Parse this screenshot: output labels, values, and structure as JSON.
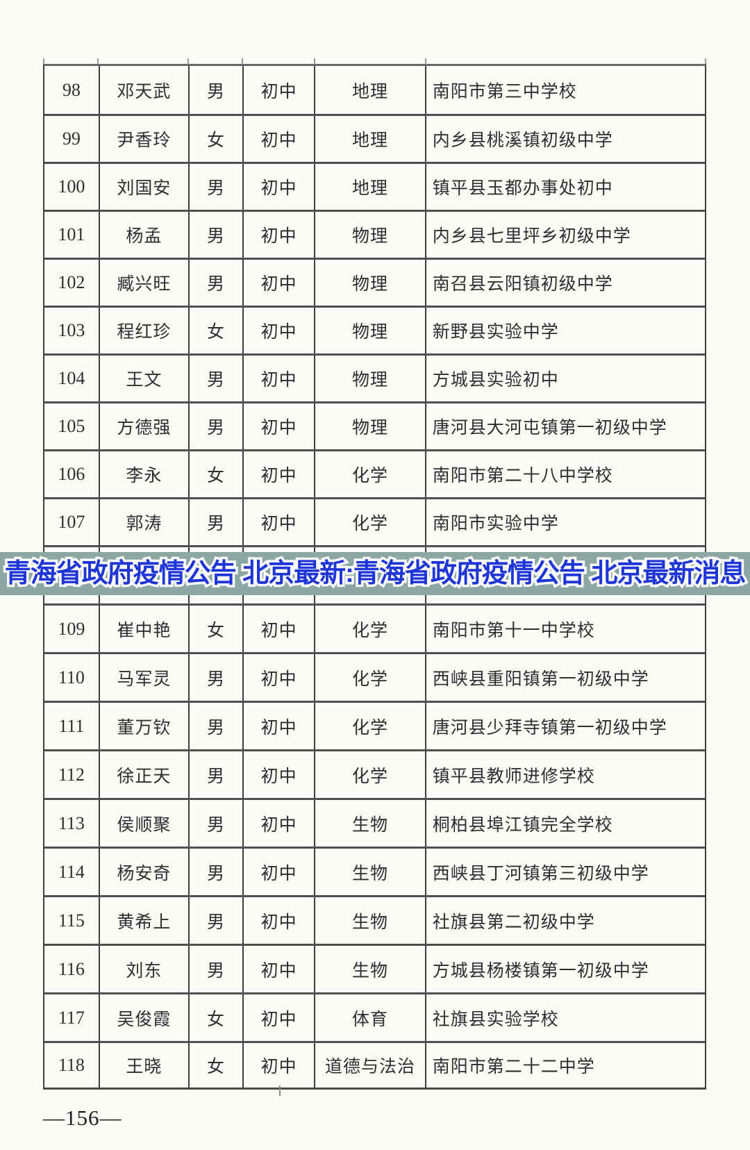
{
  "table": {
    "rows": [
      {
        "no": "98",
        "name": "邓天武",
        "gender": "男",
        "stage": "初中",
        "subject": "地理",
        "school": "南阳市第三中学校"
      },
      {
        "no": "99",
        "name": "尹香玲",
        "gender": "女",
        "stage": "初中",
        "subject": "地理",
        "school": "内乡县桃溪镇初级中学"
      },
      {
        "no": "100",
        "name": "刘国安",
        "gender": "男",
        "stage": "初中",
        "subject": "地理",
        "school": "镇平县玉都办事处初中"
      },
      {
        "no": "101",
        "name": "杨孟",
        "gender": "男",
        "stage": "初中",
        "subject": "物理",
        "school": "内乡县七里坪乡初级中学"
      },
      {
        "no": "102",
        "name": "臧兴旺",
        "gender": "男",
        "stage": "初中",
        "subject": "物理",
        "school": "南召县云阳镇初级中学"
      },
      {
        "no": "103",
        "name": "程红珍",
        "gender": "女",
        "stage": "初中",
        "subject": "物理",
        "school": "新野县实验中学"
      },
      {
        "no": "104",
        "name": "王文",
        "gender": "男",
        "stage": "初中",
        "subject": "物理",
        "school": "方城县实验初中"
      },
      {
        "no": "105",
        "name": "方德强",
        "gender": "男",
        "stage": "初中",
        "subject": "物理",
        "school": "唐河县大河屯镇第一初级中学"
      },
      {
        "no": "106",
        "name": "李永",
        "gender": "女",
        "stage": "初中",
        "subject": "化学",
        "school": "南阳市第二十八中学校"
      },
      {
        "no": "107",
        "name": "郭涛",
        "gender": "男",
        "stage": "初中",
        "subject": "化学",
        "school": "南阳市实验中学"
      },
      {
        "no": "",
        "name": "",
        "gender": "",
        "stage": "",
        "subject": "",
        "school": ""
      },
      {
        "no": "109",
        "name": "崔中艳",
        "gender": "女",
        "stage": "初中",
        "subject": "化学",
        "school": "南阳市第十一中学校"
      },
      {
        "no": "110",
        "name": "马军灵",
        "gender": "男",
        "stage": "初中",
        "subject": "化学",
        "school": "西峡县重阳镇第一初级中学"
      },
      {
        "no": "111",
        "name": "董万钦",
        "gender": "男",
        "stage": "初中",
        "subject": "化学",
        "school": "唐河县少拜寺镇第一初级中学"
      },
      {
        "no": "112",
        "name": "徐正天",
        "gender": "男",
        "stage": "初中",
        "subject": "化学",
        "school": "镇平县教师进修学校"
      },
      {
        "no": "113",
        "name": "侯顺聚",
        "gender": "男",
        "stage": "初中",
        "subject": "生物",
        "school": "桐柏县埠江镇完全学校"
      },
      {
        "no": "114",
        "name": "杨安奇",
        "gender": "男",
        "stage": "初中",
        "subject": "生物",
        "school": "西峡县丁河镇第三初级中学"
      },
      {
        "no": "115",
        "name": "黄希上",
        "gender": "男",
        "stage": "初中",
        "subject": "生物",
        "school": "社旗县第二初级中学"
      },
      {
        "no": "116",
        "name": "刘东",
        "gender": "男",
        "stage": "初中",
        "subject": "生物",
        "school": "方城县杨楼镇第一初级中学"
      },
      {
        "no": "117",
        "name": "吴俊霞",
        "gender": "女",
        "stage": "初中",
        "subject": "体育",
        "school": "社旗县实验学校"
      },
      {
        "no": "118",
        "name": "王晓",
        "gender": "女",
        "stage": "初中",
        "subject": "道德与法治",
        "school": "南阳市第二十二中学"
      }
    ]
  },
  "overlay": {
    "text": "青海省政府疫情公告 北京最新:青海省政府疫情公告 北京最新消息",
    "background_color": "#8da7a2",
    "text_color": "#1e35d8",
    "outline_color": "#ffffff"
  },
  "footer": {
    "page_number": "—156—"
  }
}
